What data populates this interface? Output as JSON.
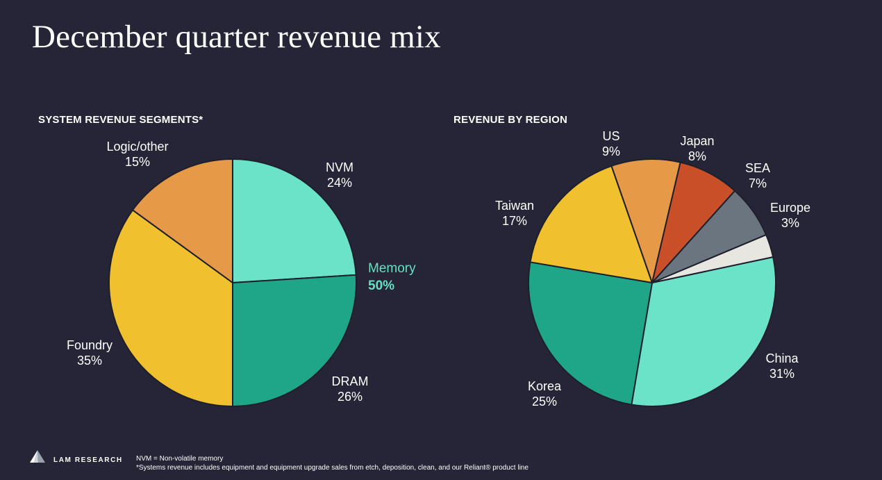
{
  "title": "December quarter revenue mix",
  "colors": {
    "background": "#252537",
    "teal_light": "#6ae3c9",
    "teal_dark": "#1fa688",
    "yellow": "#f0c02e",
    "orange": "#e69a48",
    "red_orange": "#c94f28",
    "slate": "#6b7580",
    "off_white": "#e8e6e1",
    "memory_text": "#66e0c4"
  },
  "memory_group": {
    "label": "Memory",
    "value": "50%"
  },
  "logo": {
    "text": "LAM RESEARCH",
    "icon": "lam-logo-icon"
  },
  "footnotes": [
    "NVM = Non-volatile memory",
    "*Systems revenue includes equipment and equipment upgrade sales from etch, deposition, clean, and our Reliant® product line"
  ],
  "chart_data": [
    {
      "type": "pie",
      "title": "SYSTEM REVENUE SEGMENTS*",
      "slices": [
        {
          "label": "NVM",
          "value": 24,
          "display": "24%",
          "color": "#6ae3c9"
        },
        {
          "label": "DRAM",
          "value": 26,
          "display": "26%",
          "color": "#1fa688"
        },
        {
          "label": "Foundry",
          "value": 35,
          "display": "35%",
          "color": "#f0c02e"
        },
        {
          "label": "Logic/other",
          "value": 15,
          "display": "15%",
          "color": "#e69a48"
        }
      ]
    },
    {
      "type": "pie",
      "title": "REVENUE BY REGION",
      "slices": [
        {
          "label": "China",
          "value": 31,
          "display": "31%",
          "color": "#6ae3c9"
        },
        {
          "label": "Korea",
          "value": 25,
          "display": "25%",
          "color": "#1fa688"
        },
        {
          "label": "Taiwan",
          "value": 17,
          "display": "17%",
          "color": "#f0c02e"
        },
        {
          "label": "US",
          "value": 9,
          "display": "9%",
          "color": "#e69a48"
        },
        {
          "label": "Japan",
          "value": 8,
          "display": "8%",
          "color": "#c94f28"
        },
        {
          "label": "SEA",
          "value": 7,
          "display": "7%",
          "color": "#6b7580"
        },
        {
          "label": "Europe",
          "value": 3,
          "display": "3%",
          "color": "#e8e6e1"
        }
      ]
    }
  ]
}
